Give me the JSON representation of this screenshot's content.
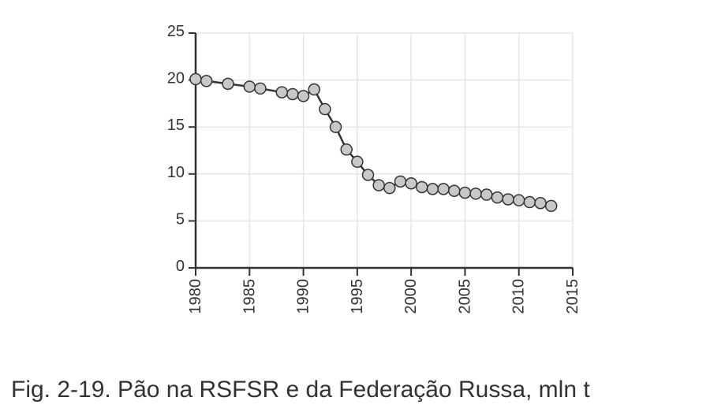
{
  "caption": "Fig. 2-19. Pão na RSFSR e da Federação Russa, mln t",
  "chart_data": {
    "type": "line",
    "title": "",
    "xlabel": "",
    "ylabel": "",
    "xlim": [
      1980,
      2015
    ],
    "ylim": [
      0,
      25
    ],
    "x_ticks": [
      1980,
      1985,
      1990,
      1995,
      2000,
      2005,
      2010,
      2015
    ],
    "y_ticks": [
      0,
      5,
      10,
      15,
      20,
      25
    ],
    "grid": true,
    "series": [
      {
        "x": [
          1980,
          1981,
          1983,
          1985,
          1986,
          1988,
          1989,
          1990,
          1991,
          1992,
          1993,
          1994,
          1995,
          1996,
          1997,
          1998,
          1999,
          2000,
          2001,
          2002,
          2003,
          2004,
          2005,
          2006,
          2007,
          2008,
          2009,
          2010,
          2011,
          2012,
          2013
        ],
        "values": [
          20.1,
          19.9,
          19.6,
          19.3,
          19.1,
          18.7,
          18.5,
          18.3,
          19.0,
          16.9,
          15.0,
          12.6,
          11.3,
          9.9,
          8.8,
          8.5,
          9.2,
          9.0,
          8.6,
          8.4,
          8.4,
          8.2,
          8.0,
          7.9,
          7.8,
          7.5,
          7.3,
          7.2,
          7.0,
          6.9,
          6.6
        ]
      }
    ],
    "colors": {
      "line": "#333333",
      "marker_fill": "#c8c8c8",
      "marker_stroke": "#333333",
      "grid": "#e6e6e6",
      "axis": "#333333"
    }
  }
}
